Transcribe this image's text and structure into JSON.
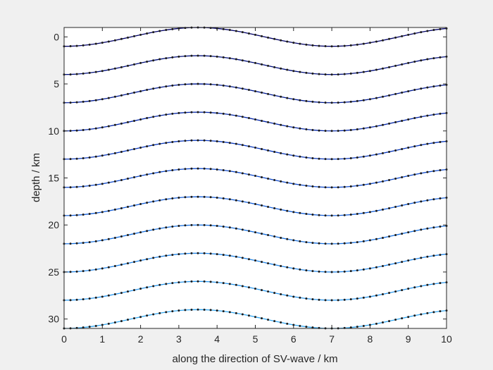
{
  "chart_data": {
    "type": "line",
    "title": "",
    "xlabel": "along the direction of SV-wave / km",
    "ylabel": "depth / km",
    "xlim": [
      0,
      10
    ],
    "ylim": [
      -1,
      31
    ],
    "y_reversed": true,
    "x_ticks": [
      0,
      1,
      2,
      3,
      4,
      5,
      6,
      7,
      8,
      9,
      10
    ],
    "y_ticks": [
      0,
      5,
      10,
      15,
      20,
      25,
      30
    ],
    "x_tick_labels": [
      "0",
      "1",
      "2",
      "3",
      "4",
      "5",
      "6",
      "7",
      "8",
      "9",
      "10"
    ],
    "y_tick_labels": [
      "0",
      "5",
      "10",
      "15",
      "20",
      "25",
      "30"
    ],
    "grid": false,
    "legend": "none",
    "markers": "dot",
    "wave": {
      "amplitude_km": 1,
      "wavelength_km": 7,
      "points_per_line": 61,
      "x_start": 0,
      "x_end": 10
    },
    "baseline_depths": [
      0,
      3,
      6,
      9,
      12,
      15,
      18,
      21,
      24,
      27,
      30
    ],
    "series": [
      {
        "baseline": 0,
        "color": "#000066"
      },
      {
        "baseline": 3,
        "color": "#000e7a"
      },
      {
        "baseline": 6,
        "color": "#001a92"
      },
      {
        "baseline": 9,
        "color": "#0628a8"
      },
      {
        "baseline": 12,
        "color": "#0a38bc"
      },
      {
        "baseline": 15,
        "color": "#0f4acc"
      },
      {
        "baseline": 18,
        "color": "#145ed8"
      },
      {
        "baseline": 21,
        "color": "#1a72e0"
      },
      {
        "baseline": 24,
        "color": "#2286e8"
      },
      {
        "baseline": 27,
        "color": "#2a98ee"
      },
      {
        "baseline": 30,
        "color": "#33a8f2"
      }
    ]
  },
  "colors": {
    "figure_background": "#f0f0f0",
    "axes_background": "#ffffff",
    "axes_line": "#262626",
    "marker": "#1a1a1a"
  }
}
